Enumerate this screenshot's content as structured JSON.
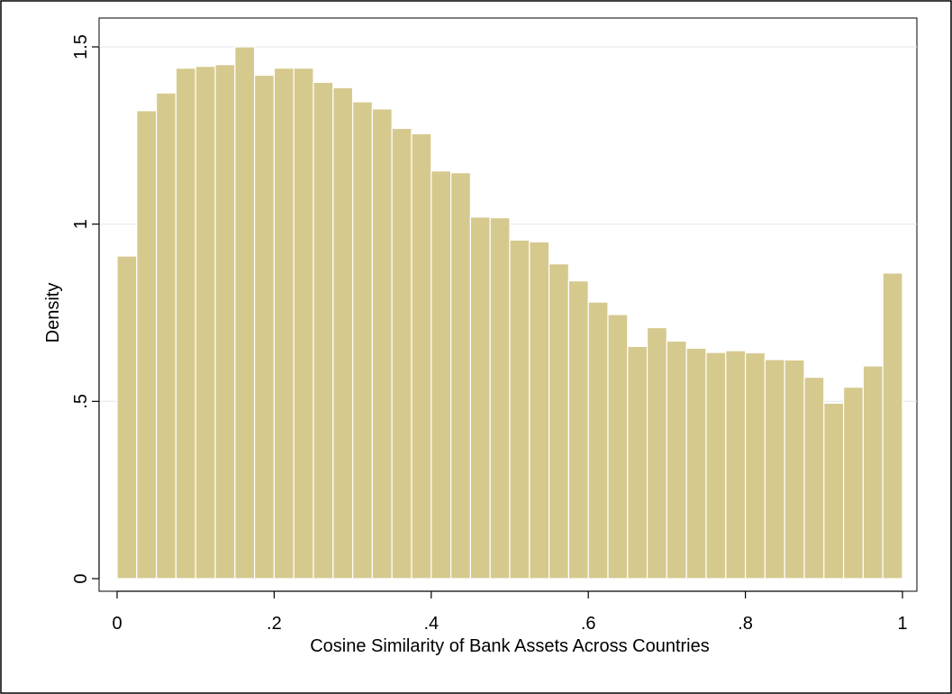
{
  "chart_data": {
    "type": "bar",
    "title": "",
    "xlabel": "Cosine Similarity of Bank Assets Across Countries",
    "ylabel": "Density",
    "xlim": [
      0,
      1
    ],
    "ylim": [
      0,
      1.5
    ],
    "x_ticks": [
      0,
      0.2,
      0.4,
      0.6,
      0.8,
      1
    ],
    "x_tick_labels": [
      "0",
      ".2",
      ".4",
      ".6",
      ".8",
      "1"
    ],
    "y_ticks": [
      0,
      0.5,
      1,
      1.5
    ],
    "y_tick_labels": [
      "0",
      ".5",
      "1",
      "1.5"
    ],
    "grid": "horizontal",
    "legend": "none",
    "bin_width": 0.025,
    "bin_start": 0,
    "values": [
      0.91,
      1.32,
      1.37,
      1.44,
      1.445,
      1.45,
      1.5,
      1.42,
      1.44,
      1.44,
      1.4,
      1.385,
      1.345,
      1.325,
      1.27,
      1.255,
      1.15,
      1.145,
      1.02,
      1.018,
      0.955,
      0.95,
      0.888,
      0.84,
      0.78,
      0.745,
      0.655,
      0.708,
      0.67,
      0.65,
      0.638,
      0.643,
      0.637,
      0.618,
      0.617,
      0.568,
      0.495,
      0.54,
      0.6,
      0.862
    ],
    "colors": {
      "bar_fill": "#d6c98e",
      "bar_stroke": "#ffffff",
      "grid": "#e6eaec",
      "axis": "#000000",
      "frame": "#000000",
      "background": "#ffffff"
    }
  }
}
